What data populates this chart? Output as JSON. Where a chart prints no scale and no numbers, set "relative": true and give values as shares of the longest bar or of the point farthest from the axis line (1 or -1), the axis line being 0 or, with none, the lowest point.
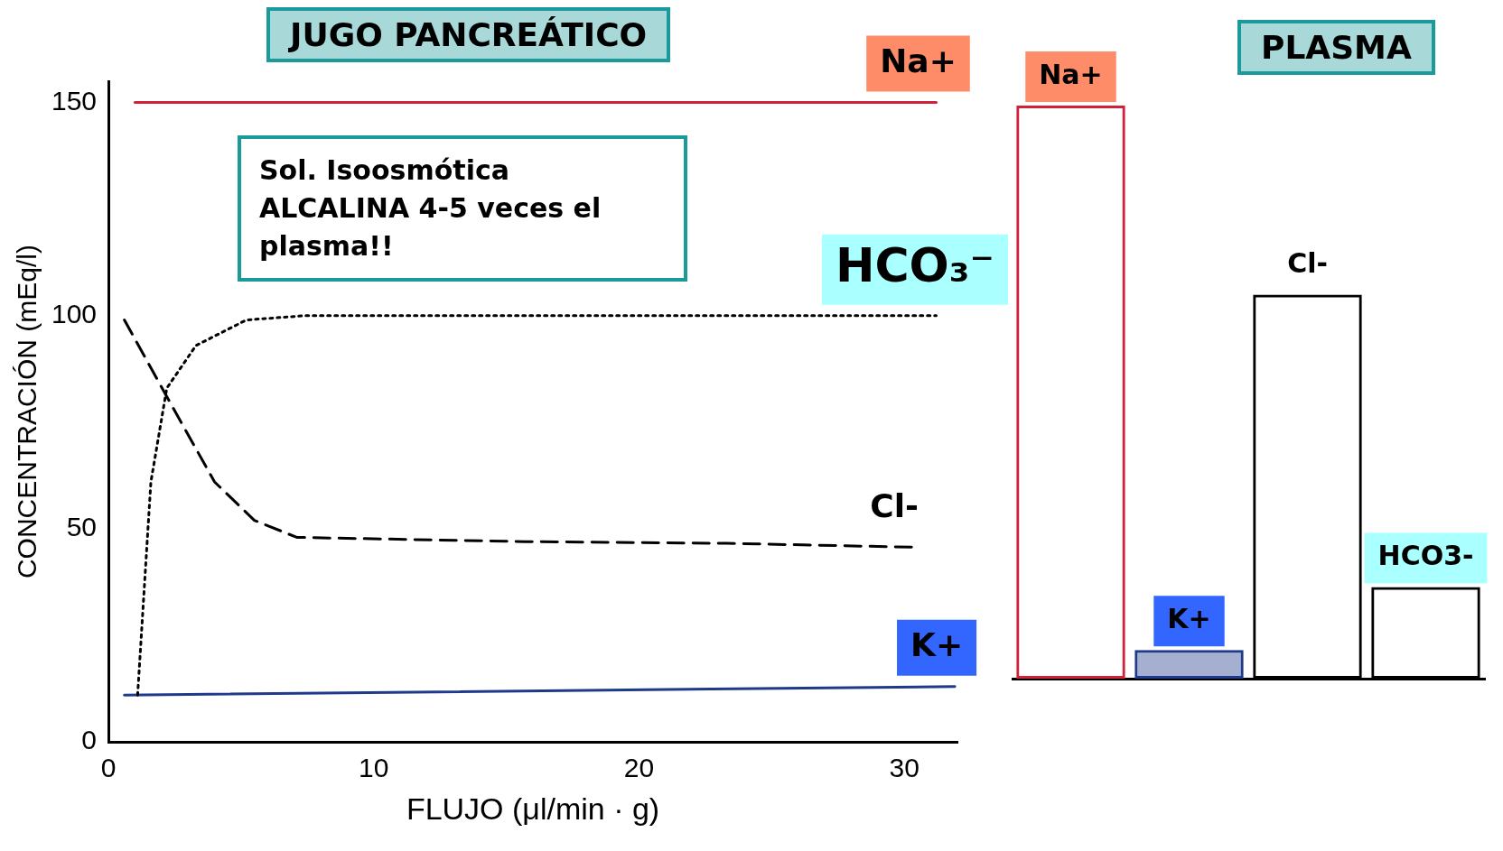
{
  "chart_data": [
    {
      "type": "line",
      "title": "JUGO PANCREÁTICO",
      "xlabel": "FLUJO (μl/min · g)",
      "ylabel": "CONCENTRACIÓN (mEq/l)",
      "annotations": [
        "Sol. Isoosmótica ALCALINA 4-5 veces el plasma!!"
      ],
      "xlim": [
        0,
        32
      ],
      "xticks": [
        0,
        10,
        20,
        30
      ],
      "ylim": [
        0,
        155
      ],
      "yticks": [
        0,
        50,
        100,
        150
      ],
      "grid": false,
      "legend": false,
      "marker": "none",
      "series": [
        {
          "name": "Na+",
          "color": "#d0203a",
          "line_style": "solid",
          "x": [
            1,
            31.2
          ],
          "values": [
            150,
            150
          ]
        },
        {
          "name": "HCO₃⁻",
          "color": "#000000",
          "line_style": "dotted",
          "x": [
            1.1,
            1.6,
            2.2,
            3.3,
            5.2,
            7.4,
            15,
            25,
            31.2
          ],
          "values": [
            11,
            61,
            83,
            93,
            99,
            100,
            100,
            100,
            100
          ]
        },
        {
          "name": "Cl-",
          "color": "#000000",
          "line_style": "dashed",
          "x": [
            0.6,
            2.2,
            4,
            5.5,
            7.1,
            15.7,
            23.3,
            30.3
          ],
          "values": [
            99,
            81,
            61,
            52,
            48,
            47,
            46.6,
            45.7
          ]
        },
        {
          "name": "K+",
          "color": "#1f3a8a",
          "line_style": "solid",
          "x": [
            0.6,
            31.9
          ],
          "values": [
            11,
            13
          ]
        }
      ]
    },
    {
      "type": "bar",
      "title": "PLASMA",
      "categories": [
        "Na+",
        "K+",
        "Cl-",
        "HCO3-"
      ],
      "values": [
        1,
        0.05,
        0.67,
        0.16
      ],
      "colors": [
        "#d0203a",
        "#1f3a8a",
        "#000000",
        "#000000"
      ],
      "relative": true,
      "legend": false
    }
  ]
}
